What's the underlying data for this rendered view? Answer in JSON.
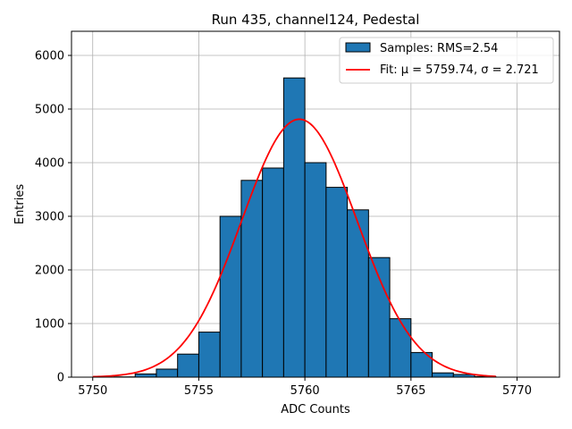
{
  "chart_data": {
    "type": "bar",
    "title": "Run 435, channel124, Pedestal",
    "xlabel": "ADC Counts",
    "ylabel": "Entries",
    "xlim": [
      5749,
      5772
    ],
    "ylim": [
      0,
      6450
    ],
    "xticks": [
      5750,
      5755,
      5760,
      5765,
      5770
    ],
    "yticks": [
      0,
      1000,
      2000,
      3000,
      4000,
      5000,
      6000
    ],
    "grid": true,
    "legend_position": "top-right",
    "histogram": {
      "name": "Samples: RMS=2.54",
      "color": "#1f77b4",
      "edge_color": "#000000",
      "bin_edges": [
        5750,
        5751,
        5752,
        5753,
        5754,
        5755,
        5756,
        5757,
        5758,
        5759,
        5760,
        5761,
        5762,
        5763,
        5764,
        5765,
        5766,
        5767,
        5768,
        5769,
        5770,
        5771
      ],
      "values": [
        0,
        5,
        60,
        150,
        430,
        840,
        3000,
        3670,
        3900,
        5580,
        4000,
        3540,
        3120,
        2230,
        1090,
        460,
        80,
        50,
        10,
        0,
        0
      ]
    },
    "fit": {
      "name": "Fit: μ = 5759.74, σ = 2.721",
      "color": "#ff0000",
      "mu": 5759.74,
      "sigma": 2.721,
      "amplitude": 4810,
      "x_range": [
        5750,
        5769
      ]
    }
  }
}
